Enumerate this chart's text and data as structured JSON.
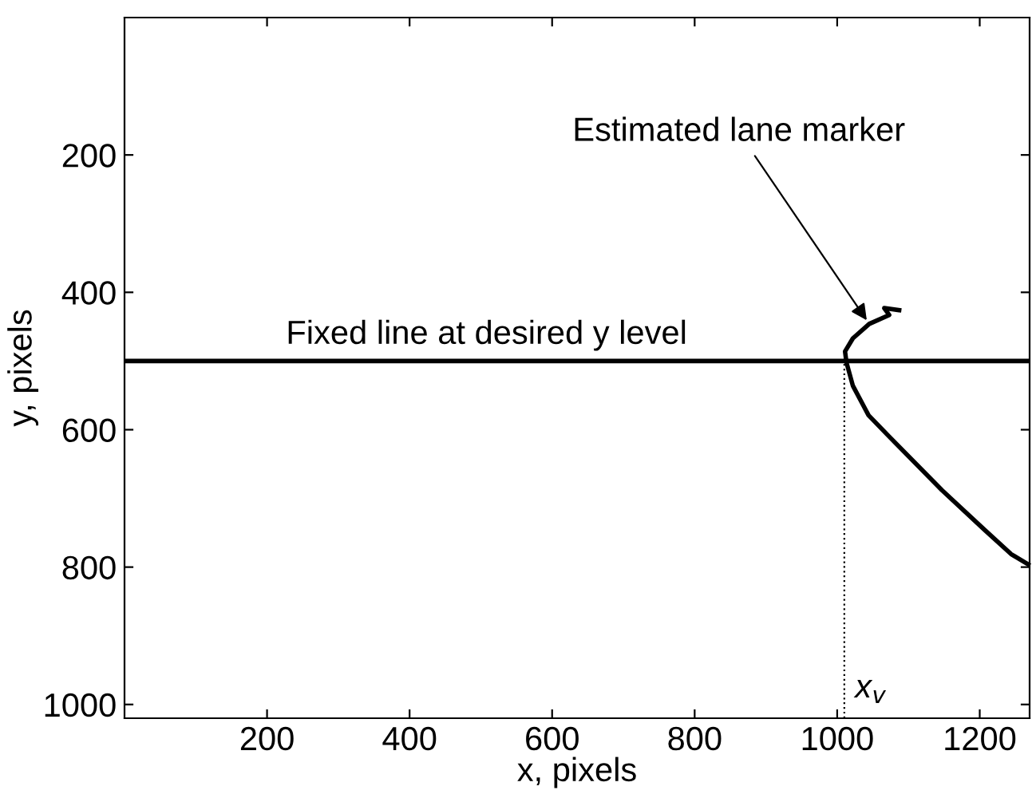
{
  "chart_data": {
    "type": "line",
    "xlabel": "x, pixels",
    "ylabel": "y, pixels",
    "xlim": [
      0,
      1270
    ],
    "ylim": [
      1020,
      0
    ],
    "xticks": [
      200,
      400,
      600,
      800,
      1000,
      1200
    ],
    "yticks": [
      200,
      400,
      600,
      800,
      1000
    ],
    "grid": false,
    "marker": "none",
    "line_style": "solid",
    "series": [
      {
        "color": "#000000",
        "x": [
          1087,
          1066,
          1073,
          1045,
          1022,
          1011,
          1013,
          1022,
          1044,
          1073,
          1147,
          1207,
          1244,
          1268
        ],
        "values": [
          426,
          423,
          433,
          446,
          467,
          486,
          502,
          536,
          579,
          610,
          688,
          746,
          781,
          796
        ]
      }
    ],
    "ref_lines": [
      {
        "axis": "y",
        "value": 500,
        "label": "Fixed line at desired y level",
        "color": "#000000",
        "line_style": "solid"
      },
      {
        "axis": "x",
        "value": 1010,
        "label": "x$_{v}$",
        "color": "#000000",
        "line_style": "dotted"
      }
    ],
    "annotations": [
      {
        "text": "Estimated lane marker",
        "x": 1045,
        "y": 446
      }
    ]
  }
}
